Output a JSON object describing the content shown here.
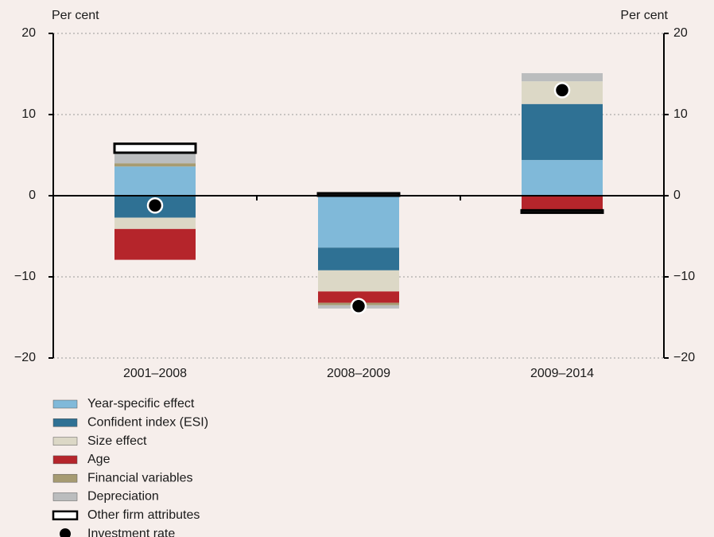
{
  "chart_data": {
    "type": "bar",
    "stacked": true,
    "y_label": "Per cent",
    "y2_label": "Per cent",
    "categories": [
      "2001–2008",
      "2008–2009",
      "2009–2014"
    ],
    "series": [
      {
        "name": "Year-specific effect",
        "color": "#80b9d9",
        "values": [
          3.6,
          -6.4,
          4.4
        ]
      },
      {
        "name": "Confident index (ESI)",
        "color": "#2f7194",
        "values": [
          -2.7,
          -2.8,
          6.9
        ]
      },
      {
        "name": "Size effect",
        "color": "#dcd8c6",
        "values": [
          -1.4,
          -2.6,
          2.8
        ]
      },
      {
        "name": "Age",
        "color": "#b5252b",
        "values": [
          -3.8,
          -1.4,
          -1.8
        ]
      },
      {
        "name": "Financial variables",
        "color": "#a69b72",
        "values": [
          0.4,
          -0.3,
          0
        ]
      },
      {
        "name": "Depreciation",
        "color": "#bbbdbe",
        "values": [
          1.3,
          -0.4,
          1.0
        ]
      },
      {
        "name": "Other firm attributes",
        "color": "#ffffff",
        "values": [
          1.1,
          0.3,
          -0.3
        ]
      },
      {
        "name": "Investment rate",
        "color": "#000000",
        "marker": "circle",
        "values": [
          -1.2,
          -13.6,
          13.0
        ]
      }
    ],
    "ylim": [
      -20,
      20
    ],
    "yticks": [
      {
        "value": -20,
        "label": "−20"
      },
      {
        "value": -10,
        "label": "−10"
      },
      0,
      10,
      20
    ],
    "y2lim": [
      -20,
      20
    ],
    "y2ticks": [
      {
        "value": -20,
        "label": "−20"
      },
      {
        "value": -10,
        "label": "−10"
      },
      0,
      10,
      20
    ],
    "grid": true,
    "legend": "bottom-left"
  }
}
